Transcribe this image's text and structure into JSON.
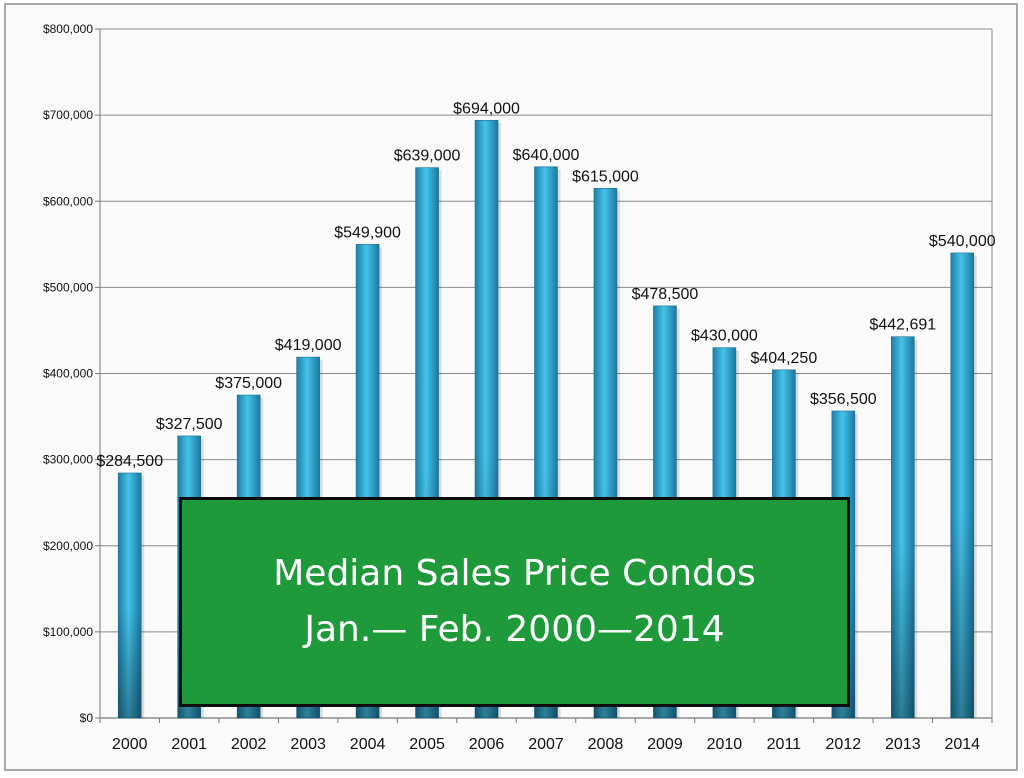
{
  "chart_data": {
    "type": "bar",
    "title": "Median Sales Price Condos",
    "subtitle": "Jan.— Feb. 2000—2014",
    "xlabel": "",
    "ylabel": "",
    "ylim": [
      0,
      800000
    ],
    "yticks": [
      0,
      100000,
      200000,
      300000,
      400000,
      500000,
      600000,
      700000,
      800000
    ],
    "ytick_labels": [
      "$0",
      "$100,000",
      "$200,000",
      "$300,000",
      "$400,000",
      "$500,000",
      "$600,000",
      "$700,000",
      "$800,000"
    ],
    "grid": true,
    "categories": [
      "2000",
      "2001",
      "2002",
      "2003",
      "2004",
      "2005",
      "2006",
      "2007",
      "2008",
      "2009",
      "2010",
      "2011",
      "2012",
      "2013",
      "2014"
    ],
    "values": [
      284500,
      327500,
      375000,
      419000,
      549900,
      639000,
      694000,
      640000,
      615000,
      478500,
      430000,
      404250,
      356500,
      442691,
      540000
    ],
    "data_labels": [
      "$284,500",
      "$327,500",
      "$375,000",
      "$419,000",
      "$549,900",
      "$639,000",
      "$694,000",
      "$640,000",
      "$615,000",
      "$478,500",
      "$430,000",
      "$404,250",
      "$356,500",
      "$442,691",
      "$540,000"
    ],
    "bar_color": "#33b2dc",
    "title_box_color": "#1f9a3a"
  }
}
